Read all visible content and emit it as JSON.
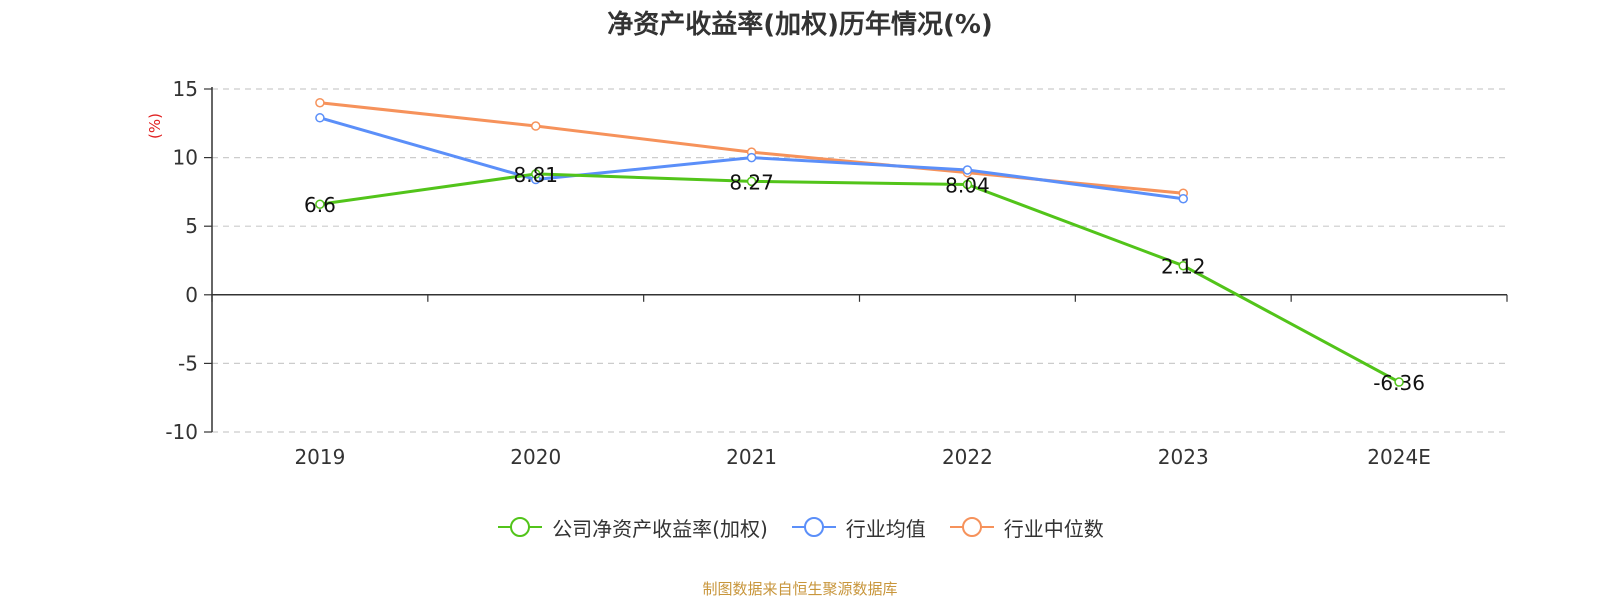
{
  "chart_data": {
    "type": "line",
    "title": "净资产收益率(加权)历年情况(%)",
    "ylabel": "(%)",
    "xlabel": "",
    "categories": [
      "2019",
      "2020",
      "2021",
      "2022",
      "2023",
      "2024E"
    ],
    "ylim": [
      -10,
      15
    ],
    "yticks": [
      -10,
      -5,
      0,
      5,
      10,
      15
    ],
    "grid": true,
    "legend_position": "bottom",
    "series": [
      {
        "name": "公司净资产收益率(加权)",
        "color": "#52c41a",
        "values": [
          6.6,
          8.81,
          8.27,
          8.04,
          2.12,
          -6.36
        ],
        "labels": [
          "6.6",
          "8.81",
          "8.27",
          "8.04",
          "2.12",
          "-6.36"
        ]
      },
      {
        "name": "行业均值",
        "color": "#5b8ff9",
        "values": [
          12.9,
          8.4,
          10.0,
          9.1,
          7.0,
          null
        ]
      },
      {
        "name": "行业中位数",
        "color": "#f6925b",
        "values": [
          14.0,
          12.3,
          10.4,
          8.9,
          7.4,
          null
        ]
      }
    ]
  },
  "source": "制图数据来自恒生聚源数据库"
}
